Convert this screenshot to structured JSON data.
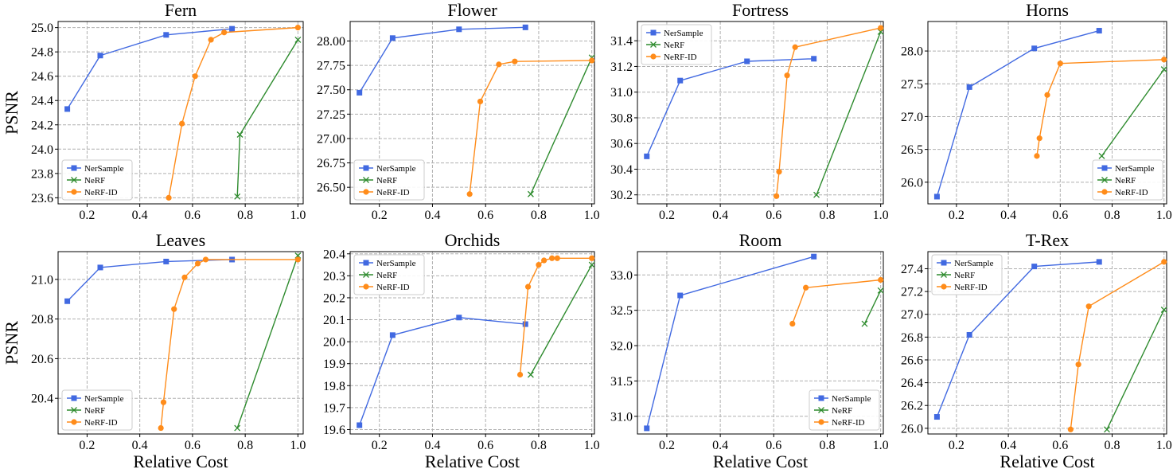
{
  "figure": {
    "ylabel": "PSNR",
    "xlabel": "Relative Cost",
    "legend_labels": [
      "NerSample",
      "NeRF",
      "NeRF-ID"
    ],
    "colors": {
      "NerSample": "#4169e1",
      "NeRF": "#2e8b2e",
      "NeRF-ID": "#ff8c1a"
    },
    "markers": {
      "NerSample": "square",
      "NeRF": "x",
      "NeRF-ID": "circle"
    },
    "grid": true
  },
  "chart_data": [
    {
      "type": "line",
      "title": "Fern",
      "xlabel": "",
      "ylabel": "PSNR",
      "xlim": [
        0.09,
        1.02
      ],
      "ylim": [
        23.55,
        25.05
      ],
      "xticks": [
        0.2,
        0.4,
        0.6,
        0.8,
        1.0
      ],
      "xtick_labels": [
        "0.2",
        "0.4",
        "0.6",
        "0.8",
        "1.0"
      ],
      "yticks": [
        23.6,
        23.8,
        24.0,
        24.2,
        24.4,
        24.6,
        24.8,
        25.0
      ],
      "ytick_labels": [
        "23.6",
        "23.8",
        "24.0",
        "24.2",
        "24.4",
        "24.6",
        "24.8",
        "25.0"
      ],
      "legend_position": "lower-left",
      "series": [
        {
          "name": "NerSample",
          "x": [
            0.125,
            0.25,
            0.5,
            0.75
          ],
          "y": [
            24.33,
            24.77,
            24.94,
            24.99
          ]
        },
        {
          "name": "NeRF",
          "x": [
            0.77,
            0.78,
            1.0
          ],
          "y": [
            23.61,
            24.12,
            24.9
          ]
        },
        {
          "name": "NeRF-ID",
          "x": [
            0.51,
            0.56,
            0.61,
            0.67,
            0.72,
            1.0
          ],
          "y": [
            23.6,
            24.21,
            24.6,
            24.9,
            24.96,
            25.0
          ]
        }
      ]
    },
    {
      "type": "line",
      "title": "Flower",
      "xlabel": "",
      "ylabel": "",
      "xlim": [
        0.09,
        1.01
      ],
      "ylim": [
        26.33,
        28.2
      ],
      "xticks": [
        0.2,
        0.4,
        0.6,
        0.8,
        1.0
      ],
      "xtick_labels": [
        "0.2",
        "0.4",
        "0.6",
        "0.8",
        "1.0"
      ],
      "yticks": [
        26.5,
        26.75,
        27.0,
        27.25,
        27.5,
        27.75,
        28.0
      ],
      "ytick_labels": [
        "26.50",
        "26.75",
        "27.00",
        "27.25",
        "27.50",
        "27.75",
        "28.00"
      ],
      "legend_position": "lower-left",
      "series": [
        {
          "name": "NerSample",
          "x": [
            0.125,
            0.25,
            0.5,
            0.75
          ],
          "y": [
            27.47,
            28.03,
            28.12,
            28.14
          ]
        },
        {
          "name": "NeRF",
          "x": [
            0.77,
            1.0
          ],
          "y": [
            26.43,
            27.83
          ]
        },
        {
          "name": "NeRF-ID",
          "x": [
            0.54,
            0.58,
            0.65,
            0.71,
            1.0
          ],
          "y": [
            26.43,
            27.38,
            27.76,
            27.79,
            27.8
          ]
        }
      ]
    },
    {
      "type": "line",
      "title": "Fortress",
      "xlabel": "",
      "ylabel": "",
      "xlim": [
        0.09,
        1.01
      ],
      "ylim": [
        30.13,
        31.55
      ],
      "xticks": [
        0.2,
        0.4,
        0.6,
        0.8,
        1.0
      ],
      "xtick_labels": [
        "0.2",
        "0.4",
        "0.6",
        "0.8",
        "1.0"
      ],
      "yticks": [
        30.2,
        30.4,
        30.6,
        30.8,
        31.0,
        31.2,
        31.4
      ],
      "ytick_labels": [
        "30.2",
        "30.4",
        "30.6",
        "30.8",
        "31.0",
        "31.2",
        "31.4"
      ],
      "legend_position": "upper-left",
      "series": [
        {
          "name": "NerSample",
          "x": [
            0.125,
            0.25,
            0.5,
            0.75
          ],
          "y": [
            30.5,
            31.09,
            31.24,
            31.26
          ]
        },
        {
          "name": "NeRF",
          "x": [
            0.76,
            1.0
          ],
          "y": [
            30.2,
            31.47
          ]
        },
        {
          "name": "NeRF-ID",
          "x": [
            0.61,
            0.62,
            0.65,
            0.68,
            1.0
          ],
          "y": [
            30.19,
            30.38,
            31.13,
            31.35,
            31.5
          ]
        }
      ]
    },
    {
      "type": "line",
      "title": "Horns",
      "xlabel": "",
      "ylabel": "",
      "xlim": [
        0.09,
        1.01
      ],
      "ylim": [
        25.67,
        28.45
      ],
      "xticks": [
        0.2,
        0.4,
        0.6,
        0.8,
        1.0
      ],
      "xtick_labels": [
        "0.2",
        "0.4",
        "0.6",
        "0.8",
        "1.0"
      ],
      "yticks": [
        26.0,
        26.5,
        27.0,
        27.5,
        28.0
      ],
      "ytick_labels": [
        "26.0",
        "26.5",
        "27.0",
        "27.5",
        "28.0"
      ],
      "legend_position": "lower-right",
      "series": [
        {
          "name": "NerSample",
          "x": [
            0.125,
            0.25,
            0.5,
            0.75
          ],
          "y": [
            25.78,
            27.45,
            28.04,
            28.31
          ]
        },
        {
          "name": "NeRF",
          "x": [
            0.76,
            1.0
          ],
          "y": [
            26.4,
            27.72
          ]
        },
        {
          "name": "NeRF-ID",
          "x": [
            0.51,
            0.52,
            0.55,
            0.6,
            1.0
          ],
          "y": [
            26.4,
            26.67,
            27.33,
            27.81,
            27.87
          ]
        }
      ]
    },
    {
      "type": "line",
      "title": "Leaves",
      "xlabel": "Relative Cost",
      "ylabel": "PSNR",
      "xlim": [
        0.09,
        1.02
      ],
      "ylim": [
        20.22,
        21.14
      ],
      "xticks": [
        0.2,
        0.4,
        0.6,
        0.8,
        1.0
      ],
      "xtick_labels": [
        "0.2",
        "0.4",
        "0.6",
        "0.8",
        "1.0"
      ],
      "yticks": [
        20.4,
        20.6,
        20.8,
        21.0
      ],
      "ytick_labels": [
        "20.4",
        "20.6",
        "20.8",
        "21.0"
      ],
      "legend_position": "lower-left",
      "series": [
        {
          "name": "NerSample",
          "x": [
            0.125,
            0.25,
            0.5,
            0.75
          ],
          "y": [
            20.89,
            21.06,
            21.09,
            21.1
          ]
        },
        {
          "name": "NeRF",
          "x": [
            0.77,
            1.0
          ],
          "y": [
            20.25,
            21.12
          ]
        },
        {
          "name": "NeRF-ID",
          "x": [
            0.48,
            0.49,
            0.53,
            0.57,
            0.62,
            0.65,
            1.0
          ],
          "y": [
            20.25,
            20.38,
            20.85,
            21.01,
            21.08,
            21.1,
            21.1
          ]
        }
      ]
    },
    {
      "type": "line",
      "title": "Orchids",
      "xlabel": "Relative Cost",
      "ylabel": "",
      "xlim": [
        0.09,
        1.01
      ],
      "ylim": [
        19.58,
        20.41
      ],
      "xticks": [
        0.2,
        0.4,
        0.6,
        0.8,
        1.0
      ],
      "xtick_labels": [
        "0.2",
        "0.4",
        "0.6",
        "0.8",
        "1.0"
      ],
      "yticks": [
        19.6,
        19.7,
        19.8,
        19.9,
        20.0,
        20.1,
        20.2,
        20.3,
        20.4
      ],
      "ytick_labels": [
        "19.6",
        "19.7",
        "19.8",
        "19.9",
        "20.0",
        "20.1",
        "20.2",
        "20.3",
        "20.4"
      ],
      "legend_position": "upper-left",
      "series": [
        {
          "name": "NerSample",
          "x": [
            0.125,
            0.25,
            0.5,
            0.75
          ],
          "y": [
            19.62,
            20.03,
            20.11,
            20.08
          ]
        },
        {
          "name": "NeRF",
          "x": [
            0.77,
            1.0
          ],
          "y": [
            19.85,
            20.35
          ]
        },
        {
          "name": "NeRF-ID",
          "x": [
            0.73,
            0.76,
            0.8,
            0.82,
            0.85,
            0.87,
            1.0
          ],
          "y": [
            19.85,
            20.25,
            20.35,
            20.37,
            20.38,
            20.38,
            20.38
          ]
        }
      ]
    },
    {
      "type": "line",
      "title": "Room",
      "xlabel": "Relative Cost",
      "ylabel": "",
      "xlim": [
        0.09,
        1.01
      ],
      "ylim": [
        30.75,
        33.33
      ],
      "xticks": [
        0.2,
        0.4,
        0.6,
        0.8,
        1.0
      ],
      "xtick_labels": [
        "0.2",
        "0.4",
        "0.6",
        "0.8",
        "1.0"
      ],
      "yticks": [
        31.0,
        31.5,
        32.0,
        32.5,
        33.0
      ],
      "ytick_labels": [
        "31.0",
        "31.5",
        "32.0",
        "32.5",
        "33.0"
      ],
      "legend_position": "lower-right",
      "series": [
        {
          "name": "NerSample",
          "x": [
            0.125,
            0.25,
            0.75
          ],
          "y": [
            30.83,
            32.71,
            33.26
          ]
        },
        {
          "name": "NeRF",
          "x": [
            0.94,
            1.0
          ],
          "y": [
            32.31,
            32.78
          ]
        },
        {
          "name": "NeRF-ID",
          "x": [
            0.67,
            0.72,
            1.0
          ],
          "y": [
            32.31,
            32.82,
            32.93
          ]
        }
      ]
    },
    {
      "type": "line",
      "title": "T-Rex",
      "xlabel": "Relative Cost",
      "ylabel": "",
      "xlim": [
        0.09,
        1.01
      ],
      "ylim": [
        25.95,
        27.55
      ],
      "xticks": [
        0.2,
        0.4,
        0.6,
        0.8,
        1.0
      ],
      "xtick_labels": [
        "0.2",
        "0.4",
        "0.6",
        "0.8",
        "1.0"
      ],
      "yticks": [
        26.0,
        26.2,
        26.4,
        26.6,
        26.8,
        27.0,
        27.2,
        27.4
      ],
      "ytick_labels": [
        "26.0",
        "26.2",
        "26.4",
        "26.6",
        "26.8",
        "27.0",
        "27.2",
        "27.4"
      ],
      "legend_position": "upper-left",
      "series": [
        {
          "name": "NerSample",
          "x": [
            0.125,
            0.25,
            0.5,
            0.75
          ],
          "y": [
            26.1,
            26.82,
            27.42,
            27.46
          ]
        },
        {
          "name": "NeRF",
          "x": [
            0.78,
            1.0
          ],
          "y": [
            25.99,
            27.04
          ]
        },
        {
          "name": "NeRF-ID",
          "x": [
            0.64,
            0.67,
            0.71,
            1.0
          ],
          "y": [
            25.99,
            26.56,
            27.07,
            27.46
          ]
        }
      ]
    }
  ]
}
